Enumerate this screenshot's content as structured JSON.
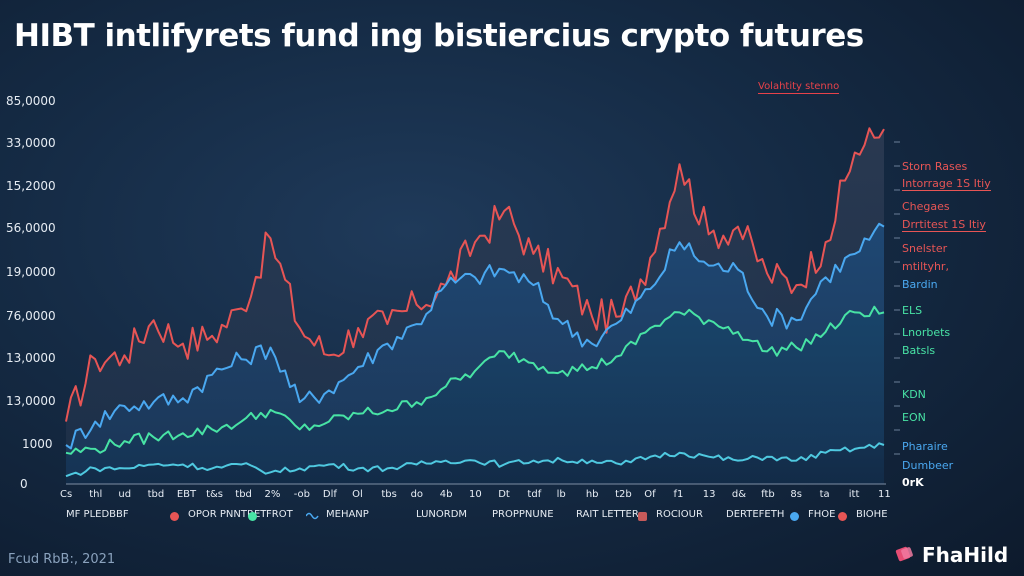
{
  "title": "HIBT intlifyrets fund ing bistiercius crypto futures",
  "annotation": "Volahtity stenno",
  "footer": "Fcud RbB:, 2021",
  "brand": "FhaHild",
  "colors": {
    "red": "#e75555",
    "blue": "#4aa8f0",
    "green": "#48e3a5",
    "cyan": "#4fc9e0",
    "pink": "#e64d74"
  },
  "side_labels": [
    {
      "text": "Storn Rases",
      "color": "red"
    },
    {
      "text": "Intorrage 1S Itiy",
      "color": "red"
    },
    {
      "text": "Chegaes",
      "color": "red"
    },
    {
      "text": "Drrtitest 1S Itiy",
      "color": "red"
    },
    {
      "text": "Snelster",
      "color": "red"
    },
    {
      "text": "mtiltyhr,",
      "color": "red"
    },
    {
      "text": "Bardin",
      "color": "blue"
    },
    {
      "text": "ELS",
      "color": "green"
    },
    {
      "text": "Lnorbets",
      "color": "green"
    },
    {
      "text": "Batsls",
      "color": "green"
    },
    {
      "text": "KDN",
      "color": "green"
    },
    {
      "text": "EON",
      "color": "green"
    },
    {
      "text": "Pharaire",
      "color": "blue"
    },
    {
      "text": "Dumbeer",
      "color": "blue"
    },
    {
      "text": "0rK",
      "color": "white"
    }
  ],
  "legend": [
    {
      "label": "MF PLEDBBF",
      "marker": "red-dot"
    },
    {
      "label": "OPOR PNNTRET",
      "marker": "green-dot"
    },
    {
      "label": "FROT",
      "marker": "wave-icon"
    },
    {
      "label": "MEHANP",
      "marker": "none"
    },
    {
      "label": "LUNORDM",
      "marker": "none"
    },
    {
      "label": "PROPPNUNE",
      "marker": "none"
    },
    {
      "label": "RAIT LETTER",
      "marker": "square"
    },
    {
      "label": "ROCIOUR",
      "marker": "none"
    },
    {
      "label": "DERTEFETH",
      "marker": "blue-dot"
    },
    {
      "label": "FHOE",
      "marker": "red-dot"
    },
    {
      "label": "BIOHE",
      "marker": "none"
    }
  ],
  "chart_data": {
    "type": "area",
    "title": "HIBT intlifyrets fund ing bistiercius crypto futures",
    "y_tick_labels": [
      "85,0000",
      "33,0000",
      "15,2000",
      "56,0000",
      "19,0000",
      "76,0000",
      "13,0000",
      "13,0000",
      "1000",
      "0"
    ],
    "x_tick_labels": [
      "Cs",
      "thl",
      "ud",
      "tbd",
      "EBT",
      "t&s",
      "tbd",
      "2%",
      "-ob",
      "Dlf",
      "Ol",
      "tbs",
      "do",
      "4b",
      "10",
      "Dt",
      "tdf",
      "lb",
      "hb",
      "t2b",
      "Of",
      "f1",
      "13",
      "d&",
      "ftb",
      "8s",
      "ta",
      "itt",
      "11"
    ],
    "x": [
      0,
      1,
      2,
      3,
      4,
      5,
      6,
      7,
      8,
      9,
      10,
      11,
      12,
      13,
      14,
      15,
      16,
      17,
      18,
      19,
      20,
      21,
      22,
      23,
      24,
      25,
      26,
      27,
      28
    ],
    "y_axis_note": "tick values are not monotonic; series given as approximate percent of the plotted value range",
    "grid": false,
    "legend_position": "bottom",
    "series": [
      {
        "color": "red",
        "values": [
          16,
          32,
          33,
          42,
          36,
          38,
          45,
          63,
          40,
          33,
          40,
          41,
          46,
          51,
          62,
          70,
          59,
          53,
          43,
          43,
          58,
          82,
          64,
          66,
          54,
          51,
          62,
          85,
          91
        ]
      },
      {
        "color": "blue",
        "values": [
          10,
          16,
          20,
          21,
          22,
          28,
          32,
          35,
          21,
          24,
          30,
          36,
          41,
          51,
          53,
          55,
          51,
          41,
          36,
          42,
          50,
          62,
          56,
          55,
          43,
          42,
          53,
          59,
          66
        ]
      },
      {
        "color": "green",
        "values": [
          8,
          9,
          11,
          12,
          13,
          14,
          16,
          19,
          14,
          16,
          18,
          19,
          21,
          25,
          29,
          34,
          31,
          29,
          30,
          33,
          40,
          44,
          42,
          39,
          34,
          35,
          39,
          44,
          44
        ]
      },
      {
        "color": "cyan",
        "values": [
          2,
          4,
          4,
          5,
          5,
          4,
          5,
          3,
          4,
          5,
          4,
          4,
          5,
          6,
          6,
          5,
          6,
          6,
          6,
          5,
          7,
          8,
          7,
          6,
          7,
          6,
          8,
          9,
          10
        ]
      }
    ]
  }
}
